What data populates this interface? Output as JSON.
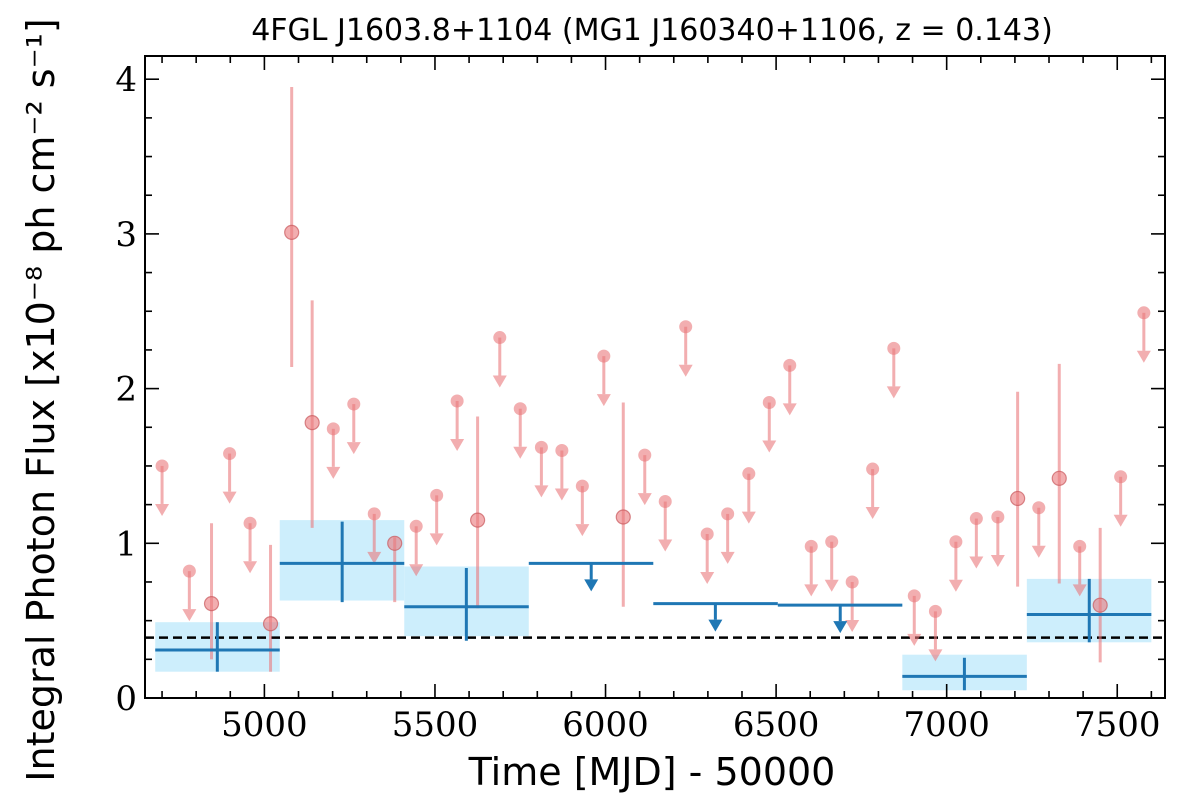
{
  "chart_data": {
    "type": "scatter",
    "title": "4FGL J1603.8+1104 (MG1 J160340+1106, z = 0.143)",
    "xlabel": "Time [MJD] - 50000",
    "ylabel": "Integral Photon Flux [x10⁻⁸ ph cm⁻² s⁻¹]",
    "xlim": [
      4650,
      7640
    ],
    "ylim": [
      0,
      4.15
    ],
    "xticks": [
      5000,
      5500,
      6000,
      6500,
      7000,
      7500
    ],
    "yticks": [
      0,
      1,
      2,
      3,
      4
    ],
    "baseline": 0.39,
    "colors": {
      "short_bin": "#e9787b",
      "long_bin": "#1f77b4",
      "band_fill": "#cdeefc",
      "baseline": "#000000"
    },
    "short_bins": {
      "detections": [
        {
          "x": 4845,
          "y": 0.61,
          "ylo": 0.25,
          "yhi": 1.13
        },
        {
          "x": 5018,
          "y": 0.48,
          "ylo": 0.17,
          "yhi": 0.99
        },
        {
          "x": 5080,
          "y": 3.01,
          "ylo": 2.14,
          "yhi": 3.95
        },
        {
          "x": 5140,
          "y": 1.78,
          "ylo": 1.1,
          "yhi": 2.57
        },
        {
          "x": 5382,
          "y": 1.0,
          "ylo": 0.62,
          "yhi": 1.04
        },
        {
          "x": 5625,
          "y": 1.15,
          "ylo": 0.58,
          "yhi": 1.82
        },
        {
          "x": 6052,
          "y": 1.17,
          "ylo": 0.59,
          "yhi": 1.91
        },
        {
          "x": 7208,
          "y": 1.29,
          "ylo": 0.72,
          "yhi": 1.98
        },
        {
          "x": 7330,
          "y": 1.42,
          "ylo": 0.74,
          "yhi": 2.16
        },
        {
          "x": 7450,
          "y": 0.6,
          "ylo": 0.23,
          "yhi": 1.1
        }
      ],
      "upper_limits": [
        {
          "x": 4700,
          "y": 1.5
        },
        {
          "x": 4780,
          "y": 0.82
        },
        {
          "x": 4898,
          "y": 1.58
        },
        {
          "x": 4958,
          "y": 1.13
        },
        {
          "x": 5202,
          "y": 1.74
        },
        {
          "x": 5262,
          "y": 1.9
        },
        {
          "x": 5322,
          "y": 1.19
        },
        {
          "x": 5445,
          "y": 1.11
        },
        {
          "x": 5505,
          "y": 1.31
        },
        {
          "x": 5565,
          "y": 1.92
        },
        {
          "x": 5690,
          "y": 2.33
        },
        {
          "x": 5750,
          "y": 1.87
        },
        {
          "x": 5812,
          "y": 1.62
        },
        {
          "x": 5872,
          "y": 1.6
        },
        {
          "x": 5932,
          "y": 1.37
        },
        {
          "x": 5995,
          "y": 2.21
        },
        {
          "x": 6115,
          "y": 1.57
        },
        {
          "x": 6175,
          "y": 1.27
        },
        {
          "x": 6235,
          "y": 2.4
        },
        {
          "x": 6298,
          "y": 1.06
        },
        {
          "x": 6358,
          "y": 1.19
        },
        {
          "x": 6420,
          "y": 1.45
        },
        {
          "x": 6480,
          "y": 1.91
        },
        {
          "x": 6540,
          "y": 2.15
        },
        {
          "x": 6603,
          "y": 0.98
        },
        {
          "x": 6663,
          "y": 1.01
        },
        {
          "x": 6723,
          "y": 0.75
        },
        {
          "x": 6783,
          "y": 1.48
        },
        {
          "x": 6845,
          "y": 2.26
        },
        {
          "x": 6905,
          "y": 0.66
        },
        {
          "x": 6967,
          "y": 0.56
        },
        {
          "x": 7027,
          "y": 1.01
        },
        {
          "x": 7087,
          "y": 1.16
        },
        {
          "x": 7150,
          "y": 1.17
        },
        {
          "x": 7270,
          "y": 1.23
        },
        {
          "x": 7390,
          "y": 0.98
        },
        {
          "x": 7510,
          "y": 1.43
        },
        {
          "x": 7578,
          "y": 2.49
        }
      ]
    },
    "long_bins": {
      "detections": [
        {
          "x0": 4680,
          "x1": 5045,
          "x": 4862,
          "y": 0.31,
          "ylo": 0.17,
          "yhi": 0.49,
          "band_lo": 0.17,
          "band_hi": 0.49
        },
        {
          "x0": 5045,
          "x1": 5410,
          "x": 5228,
          "y": 0.87,
          "ylo": 0.62,
          "yhi": 1.14,
          "band_lo": 0.63,
          "band_hi": 1.15
        },
        {
          "x0": 5410,
          "x1": 5775,
          "x": 5592,
          "y": 0.59,
          "ylo": 0.37,
          "yhi": 0.84,
          "band_lo": 0.4,
          "band_hi": 0.85
        },
        {
          "x0": 6870,
          "x1": 7235,
          "x": 7052,
          "y": 0.14,
          "ylo": 0.05,
          "yhi": 0.26,
          "band_lo": 0.05,
          "band_hi": 0.28
        },
        {
          "x0": 7235,
          "x1": 7600,
          "x": 7418,
          "y": 0.54,
          "ylo": 0.36,
          "yhi": 0.77,
          "band_lo": 0.36,
          "band_hi": 0.77
        }
      ],
      "upper_limits": [
        {
          "x0": 5775,
          "x1": 6140,
          "x": 5958,
          "y": 0.87
        },
        {
          "x0": 6140,
          "x1": 6505,
          "x": 6322,
          "y": 0.61
        },
        {
          "x0": 6505,
          "x1": 6870,
          "x": 6688,
          "y": 0.6
        }
      ]
    }
  }
}
